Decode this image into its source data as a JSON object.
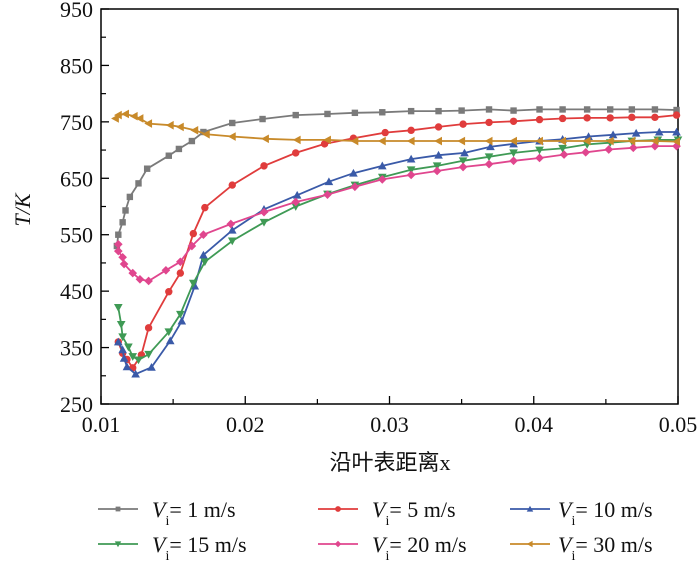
{
  "chart_data": {
    "type": "line",
    "title": "",
    "xlabel": "沿叶表距离x",
    "ylabel": "T/K",
    "xlim": [
      0.01,
      0.05
    ],
    "ylim": [
      250,
      950
    ],
    "x_ticks": [
      "0.01",
      "0.02",
      "0.03",
      "0.04",
      "0.05"
    ],
    "y_ticks": [
      "250",
      "350",
      "450",
      "550",
      "650",
      "750",
      "850",
      "950"
    ],
    "grid": false,
    "legend_placement": "bottom",
    "series": [
      {
        "name": "Vi = 1 m/s",
        "label_var": "V",
        "label_sub": "i",
        "label_rest": "= 1 m/s",
        "color": "#7a7a7a",
        "marker": "square",
        "points": [
          [
            0.0111,
            530
          ],
          [
            0.0112,
            550
          ],
          [
            0.0115,
            572
          ],
          [
            0.0117,
            593
          ],
          [
            0.012,
            617
          ],
          [
            0.0126,
            641
          ],
          [
            0.0132,
            667
          ],
          [
            0.0147,
            690
          ],
          [
            0.0154,
            702
          ],
          [
            0.0163,
            716
          ],
          [
            0.0171,
            732
          ],
          [
            0.0191,
            748
          ],
          [
            0.0212,
            755
          ],
          [
            0.0235,
            762
          ],
          [
            0.0257,
            764
          ],
          [
            0.0276,
            766
          ],
          [
            0.0295,
            767
          ],
          [
            0.0315,
            769
          ],
          [
            0.0334,
            769
          ],
          [
            0.035,
            770
          ],
          [
            0.0369,
            772
          ],
          [
            0.0386,
            770
          ],
          [
            0.0404,
            772
          ],
          [
            0.042,
            772
          ],
          [
            0.0437,
            772
          ],
          [
            0.0453,
            772
          ],
          [
            0.0468,
            772
          ],
          [
            0.0484,
            772
          ],
          [
            0.0499,
            771
          ]
        ]
      },
      {
        "name": "Vi = 5 m/s",
        "label_var": "V",
        "label_sub": "i",
        "label_rest": "= 5 m/s",
        "color": "#e03c3c",
        "marker": "circle",
        "points": [
          [
            0.0112,
            360
          ],
          [
            0.0115,
            340
          ],
          [
            0.0118,
            329
          ],
          [
            0.0122,
            314
          ],
          [
            0.0128,
            337
          ],
          [
            0.0133,
            385
          ],
          [
            0.0147,
            449
          ],
          [
            0.0155,
            482
          ],
          [
            0.0164,
            552
          ],
          [
            0.0172,
            598
          ],
          [
            0.0191,
            638
          ],
          [
            0.0213,
            672
          ],
          [
            0.0235,
            695
          ],
          [
            0.0255,
            711
          ],
          [
            0.0275,
            721
          ],
          [
            0.0297,
            731
          ],
          [
            0.0315,
            735
          ],
          [
            0.0334,
            741
          ],
          [
            0.0351,
            746
          ],
          [
            0.0369,
            749
          ],
          [
            0.0386,
            751
          ],
          [
            0.0404,
            754
          ],
          [
            0.042,
            756
          ],
          [
            0.0437,
            757
          ],
          [
            0.0453,
            757
          ],
          [
            0.0468,
            758
          ],
          [
            0.0484,
            758
          ],
          [
            0.0499,
            762
          ]
        ]
      },
      {
        "name": "Vi = 10 m/s",
        "label_var": "V",
        "label_sub": "i",
        "label_rest": "= 10 m/s",
        "color": "#3a5aa8",
        "marker": "triangle-up",
        "points": [
          [
            0.0112,
            360
          ],
          [
            0.0115,
            346
          ],
          [
            0.0116,
            331
          ],
          [
            0.0118,
            316
          ],
          [
            0.0124,
            303
          ],
          [
            0.0135,
            315
          ],
          [
            0.0148,
            362
          ],
          [
            0.0156,
            397
          ],
          [
            0.0165,
            459
          ],
          [
            0.0171,
            514
          ],
          [
            0.0191,
            558
          ],
          [
            0.0213,
            595
          ],
          [
            0.0236,
            620
          ],
          [
            0.0258,
            644
          ],
          [
            0.0275,
            659
          ],
          [
            0.0295,
            672
          ],
          [
            0.0315,
            684
          ],
          [
            0.0334,
            691
          ],
          [
            0.0352,
            695
          ],
          [
            0.037,
            706
          ],
          [
            0.0386,
            711
          ],
          [
            0.0404,
            716
          ],
          [
            0.042,
            719
          ],
          [
            0.0438,
            724
          ],
          [
            0.0455,
            727
          ],
          [
            0.0471,
            730
          ],
          [
            0.0487,
            732
          ],
          [
            0.0499,
            732
          ]
        ]
      },
      {
        "name": "Vi = 15 m/s",
        "label_var": "V",
        "label_sub": "i",
        "label_rest": "= 15 m/s",
        "color": "#3f9a55",
        "marker": "triangle-down",
        "points": [
          [
            0.0112,
            421
          ],
          [
            0.0114,
            391
          ],
          [
            0.0115,
            369
          ],
          [
            0.0119,
            351
          ],
          [
            0.0122,
            334
          ],
          [
            0.0126,
            328
          ],
          [
            0.0133,
            338
          ],
          [
            0.0147,
            378
          ],
          [
            0.0155,
            409
          ],
          [
            0.0164,
            464
          ],
          [
            0.0172,
            502
          ],
          [
            0.0191,
            539
          ],
          [
            0.0213,
            572
          ],
          [
            0.0235,
            600
          ],
          [
            0.0257,
            622
          ],
          [
            0.0276,
            638
          ],
          [
            0.0295,
            652
          ],
          [
            0.0315,
            665
          ],
          [
            0.0333,
            672
          ],
          [
            0.0351,
            681
          ],
          [
            0.0369,
            688
          ],
          [
            0.0386,
            695
          ],
          [
            0.0404,
            700
          ],
          [
            0.042,
            703
          ],
          [
            0.0437,
            710
          ],
          [
            0.0453,
            713
          ],
          [
            0.0468,
            716
          ],
          [
            0.0486,
            718
          ],
          [
            0.05,
            718
          ]
        ]
      },
      {
        "name": "Vi = 20 m/s",
        "label_var": "V",
        "label_sub": "i",
        "label_rest": "= 20 m/s",
        "color": "#e0468e",
        "marker": "diamond",
        "points": [
          [
            0.0112,
            533
          ],
          [
            0.0112,
            521
          ],
          [
            0.0115,
            510
          ],
          [
            0.0116,
            498
          ],
          [
            0.0122,
            482
          ],
          [
            0.0127,
            471
          ],
          [
            0.0133,
            468
          ],
          [
            0.0145,
            487
          ],
          [
            0.0155,
            502
          ],
          [
            0.0163,
            530
          ],
          [
            0.0171,
            550
          ],
          [
            0.019,
            569
          ],
          [
            0.0213,
            590
          ],
          [
            0.0235,
            608
          ],
          [
            0.0257,
            621
          ],
          [
            0.0276,
            635
          ],
          [
            0.0295,
            648
          ],
          [
            0.0315,
            656
          ],
          [
            0.0333,
            663
          ],
          [
            0.0351,
            670
          ],
          [
            0.0369,
            675
          ],
          [
            0.0386,
            681
          ],
          [
            0.0404,
            686
          ],
          [
            0.0421,
            692
          ],
          [
            0.0436,
            696
          ],
          [
            0.0452,
            701
          ],
          [
            0.0469,
            704
          ],
          [
            0.0484,
            707
          ],
          [
            0.0499,
            707
          ]
        ]
      },
      {
        "name": "Vi = 30 m/s",
        "label_var": "V",
        "label_sub": "i",
        "label_rest": "= 30 m/s",
        "color": "#c88a2a",
        "marker": "triangle-left",
        "points": [
          [
            0.011,
            756
          ],
          [
            0.0112,
            762
          ],
          [
            0.0117,
            764
          ],
          [
            0.0123,
            760
          ],
          [
            0.0127,
            756
          ],
          [
            0.0133,
            747
          ],
          [
            0.0148,
            744
          ],
          [
            0.0155,
            741
          ],
          [
            0.0165,
            735
          ],
          [
            0.0173,
            728
          ],
          [
            0.0191,
            724
          ],
          [
            0.0214,
            720
          ],
          [
            0.0236,
            718
          ],
          [
            0.0257,
            718
          ],
          [
            0.0276,
            716
          ],
          [
            0.0295,
            716
          ],
          [
            0.0315,
            716
          ],
          [
            0.0334,
            716
          ],
          [
            0.035,
            716
          ],
          [
            0.0369,
            716
          ],
          [
            0.0386,
            716
          ],
          [
            0.0404,
            716
          ],
          [
            0.042,
            716
          ],
          [
            0.0437,
            716
          ],
          [
            0.0453,
            716
          ],
          [
            0.0468,
            716
          ],
          [
            0.0484,
            716
          ],
          [
            0.0499,
            715
          ]
        ]
      }
    ]
  }
}
